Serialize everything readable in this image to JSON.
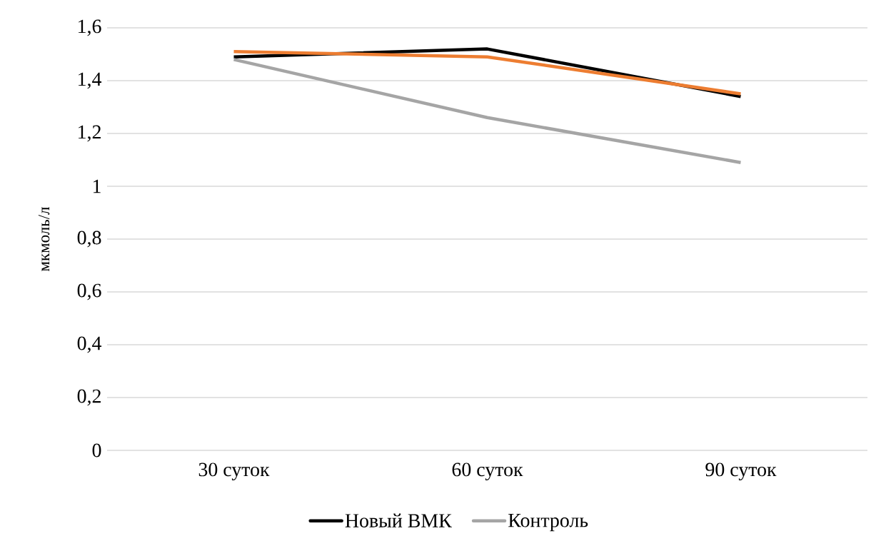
{
  "chart_data": {
    "type": "line",
    "ylabel": "мкмоль/л",
    "categories": [
      "30 суток",
      "60 суток",
      "90 суток"
    ],
    "series": [
      {
        "name": "Новый ВМК",
        "color": "#000000",
        "values": [
          1.49,
          1.52,
          1.34
        ]
      },
      {
        "color": "#ed7d31",
        "values": [
          1.51,
          1.49,
          1.35
        ]
      },
      {
        "name": "Контроль",
        "color": "#a5a5a5",
        "values": [
          1.48,
          1.26,
          1.09
        ]
      }
    ],
    "ylim": [
      0,
      1.6
    ],
    "yticks": [
      0,
      {
        "value": 0.2,
        "label": "0,2"
      },
      {
        "value": 0.4,
        "label": "0,4"
      },
      {
        "value": 0.6,
        "label": "0,6"
      },
      {
        "value": 0.8,
        "label": "0,8"
      },
      1,
      {
        "value": 1.2,
        "label": "1,2"
      },
      {
        "value": 1.4,
        "label": "1,4"
      },
      {
        "value": 1.6,
        "label": "1,6"
      }
    ],
    "grid": "y",
    "legend": "bottom",
    "marker": "none",
    "line_style": "solid"
  }
}
